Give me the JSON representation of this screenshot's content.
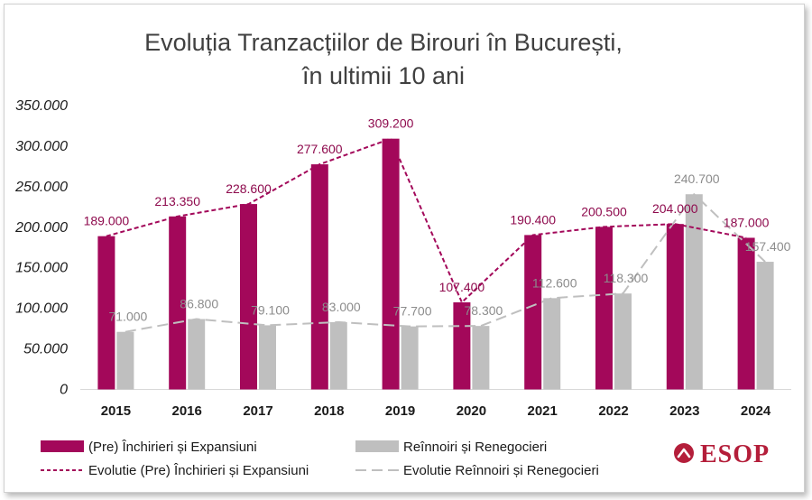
{
  "chart_data": {
    "type": "bar",
    "title_lines": [
      "Evoluția Tranzacțiilor de Birouri în București,",
      "în ultimii 10 ani"
    ],
    "categories": [
      "2015",
      "2016",
      "2017",
      "2018",
      "2019",
      "2020",
      "2021",
      "2022",
      "2023",
      "2024"
    ],
    "series": [
      {
        "name": "(Pre) Închirieri și Expansiuni",
        "color": "#a3085a",
        "values": [
          189000,
          213350,
          228600,
          277600,
          309200,
          107400,
          190400,
          200500,
          204000,
          187000
        ],
        "labels": [
          "189.000",
          "213.350",
          "228.600",
          "277.600",
          "309.200",
          "107.400",
          "190.400",
          "200.500",
          "204.000",
          "187.000"
        ]
      },
      {
        "name": "Reînnoiri și  Renegocieri",
        "color": "#bfbfbf",
        "values": [
          71000,
          86800,
          79100,
          83000,
          77700,
          78300,
          112600,
          118300,
          240700,
          157400
        ],
        "labels": [
          "71.000",
          "86.800",
          "79.100",
          "83.000",
          "77.700",
          "78.300",
          "112.600",
          "118.300",
          "240.700",
          "157.400"
        ]
      }
    ],
    "trend_lines": [
      {
        "name": "Evolutie (Pre) Închirieri și Expansiuni",
        "of_series": 0,
        "style": "short-dash",
        "color": "#a3085a"
      },
      {
        "name": "Evolutie Reînnoiri și  Renegocieri",
        "of_series": 1,
        "style": "long-dash",
        "color": "#bfbfbf"
      }
    ],
    "ylim": [
      0,
      350000
    ],
    "yticks": [
      0,
      50000,
      100000,
      150000,
      200000,
      250000,
      300000,
      350000
    ],
    "ytick_labels": [
      "0",
      "50.000",
      "100.000",
      "150.000",
      "200.000",
      "250.000",
      "300.000",
      "350.000"
    ],
    "legend_position": "bottom",
    "grid": false
  },
  "logo": {
    "text": "ESOP",
    "color": "#b41e3a"
  }
}
